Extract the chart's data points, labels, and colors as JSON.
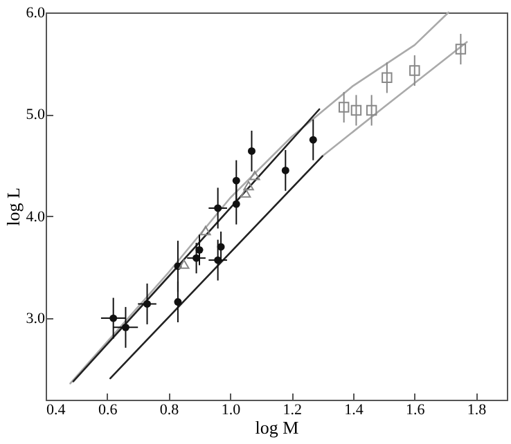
{
  "chart_data": {
    "type": "scatter",
    "xlabel": "log M",
    "ylabel": "log L",
    "xlim": [
      0.4,
      1.9
    ],
    "ylim": [
      2.2,
      6.0
    ],
    "xticks": [
      0.4,
      0.6,
      0.8,
      {
        "value": 1.0,
        "label": "1.0"
      },
      1.2,
      1.4,
      1.6,
      1.8
    ],
    "yticks": [
      {
        "value": 3.0,
        "label": "3.0"
      },
      {
        "value": 4.0,
        "label": "4.0"
      },
      {
        "value": 5.0,
        "label": "5.0"
      },
      {
        "value": 6.0,
        "label": "6.0"
      }
    ],
    "grid": false,
    "series": [
      {
        "type": "line",
        "color": "#aaaaaa",
        "line_style": "solid",
        "marker": "none",
        "x": [
          0.48,
          0.8,
          1.0,
          1.2,
          1.4,
          1.6,
          1.71
        ],
        "values": [
          2.36,
          3.45,
          4.18,
          4.78,
          5.28,
          5.68,
          6.0
        ]
      },
      {
        "type": "line",
        "color": "#222222",
        "line_style": "solid",
        "marker": "none",
        "x": [
          0.49,
          0.83,
          1.29
        ],
        "values": [
          2.38,
          3.51,
          5.05
        ]
      },
      {
        "type": "line",
        "color": "#aaaaaa",
        "line_style": "solid",
        "marker": "none",
        "x": [
          1.3,
          1.5,
          1.77
        ],
        "values": [
          4.59,
          5.07,
          5.71
        ]
      },
      {
        "type": "line",
        "color": "#222222",
        "line_style": "solid",
        "marker": "none",
        "x": [
          0.61,
          1.3
        ],
        "values": [
          2.41,
          4.59
        ]
      },
      {
        "color": "#111111",
        "marker": "circle",
        "x": [
          0.62,
          0.66,
          0.73,
          0.83,
          0.83,
          0.89,
          0.9,
          0.96,
          0.97,
          0.96,
          1.02,
          1.02,
          1.07,
          1.18,
          1.27
        ],
        "values": [
          3.0,
          2.91,
          3.14,
          3.51,
          3.16,
          3.59,
          3.67,
          4.08,
          3.7,
          3.57,
          4.35,
          4.12,
          4.64,
          4.45,
          4.75
        ],
        "errors": [
          0.2,
          0.2,
          0.2,
          0.25,
          0.2,
          0.15,
          0.15,
          0.2,
          0.15,
          0.2,
          0.2,
          0.2,
          0.2,
          0.2,
          0.2
        ],
        "xerrors": [
          0.04,
          0.04,
          0.03,
          null,
          null,
          0.03,
          null,
          0.03,
          null,
          0.03,
          null,
          null,
          null,
          null,
          null
        ]
      },
      {
        "color": "#888888",
        "marker": "triangle",
        "x": [
          0.85,
          0.92,
          1.05,
          1.06,
          1.08
        ],
        "values": [
          3.53,
          3.86,
          4.23,
          4.3,
          4.4
        ]
      },
      {
        "color": "#888888",
        "marker": "square",
        "x": [
          1.37,
          1.41,
          1.46,
          1.51,
          1.6,
          1.75
        ],
        "values": [
          5.07,
          5.04,
          5.04,
          5.36,
          5.43,
          5.64
        ],
        "errors": [
          0.15,
          0.15,
          0.15,
          0.15,
          0.15,
          0.15
        ]
      }
    ]
  }
}
